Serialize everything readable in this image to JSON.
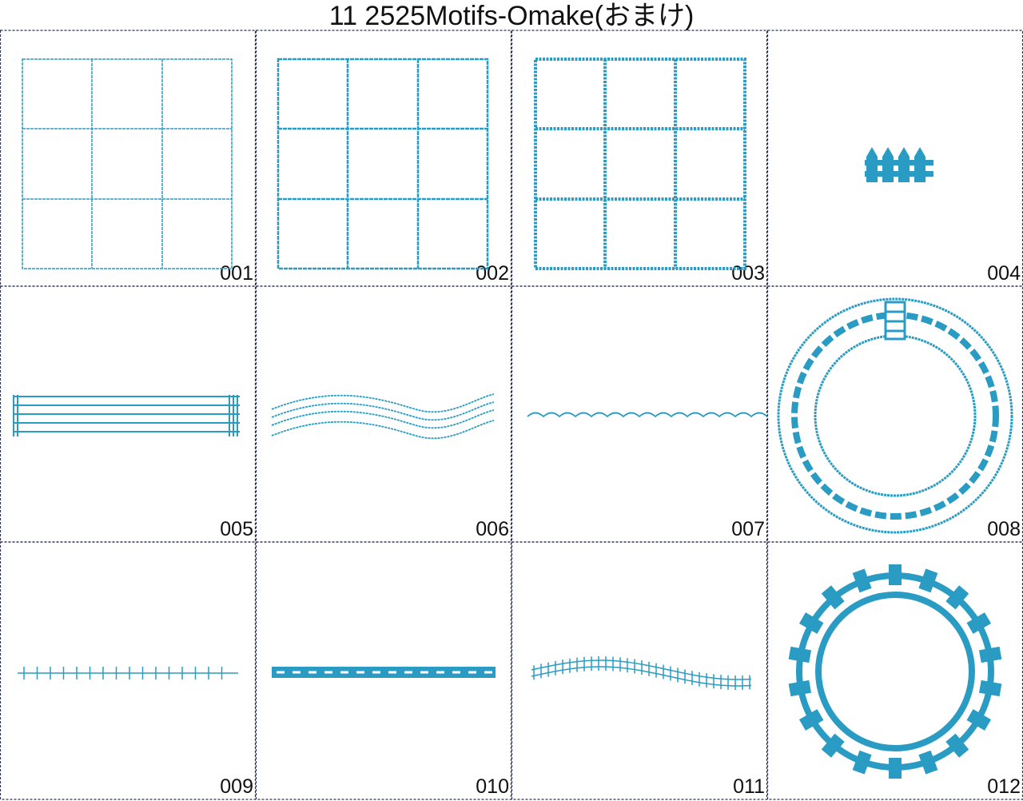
{
  "title": "11 2525Motifs-Omake(おまけ)",
  "cells": [
    {
      "label": "001"
    },
    {
      "label": "002"
    },
    {
      "label": "003"
    },
    {
      "label": "004"
    },
    {
      "label": "005"
    },
    {
      "label": "006"
    },
    {
      "label": "007"
    },
    {
      "label": "008"
    },
    {
      "label": "009"
    },
    {
      "label": "010"
    },
    {
      "label": "011"
    },
    {
      "label": "012"
    }
  ]
}
